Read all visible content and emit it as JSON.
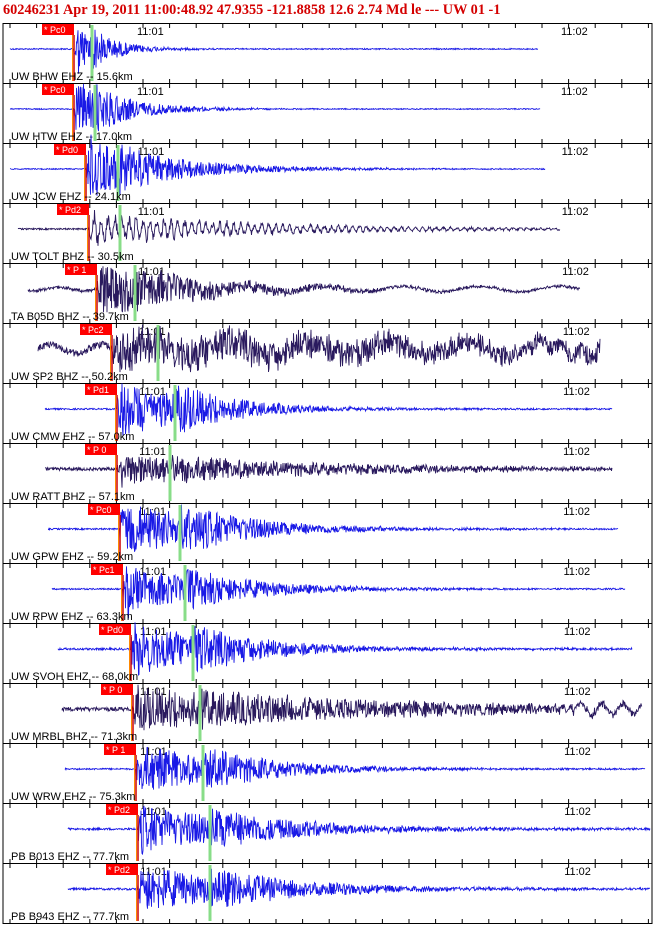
{
  "header": {
    "title": "60246231 Apr 19, 2011 11:00:48.92    47.9355 -121.8858 12.6 2.74 Md le --- UW 01  -1"
  },
  "colors": {
    "trace_ehz": "#1a1ae6",
    "trace_bhz": "#2a1a5e",
    "pick_box": "#ff0000",
    "pick_line": "#cc0000",
    "s_marker": "#88dd88",
    "origin_marker": "#ff8800",
    "frame": "#000000"
  },
  "chart_data": {
    "type": "line",
    "title": "",
    "xlabel": "",
    "ylabel": "",
    "tick_labels": [
      "11:01",
      "11:02"
    ],
    "rows": [
      {
        "label": "UW BHW EHZ -- 15.6km",
        "pick": "* Pc0",
        "component": "EHZ"
      },
      {
        "label": "UW HTW EHZ -- 17.0km",
        "pick": "* Pc0",
        "component": "EHZ"
      },
      {
        "label": "UW JCW EHZ -- 24.1km",
        "pick": "* Pd0",
        "component": "EHZ"
      },
      {
        "label": "UW TOLT BHZ -- 30.5km",
        "pick": "* Pd2",
        "component": "BHZ"
      },
      {
        "label": "TA B05D BHZ -- 39.7km",
        "pick": "* P 1",
        "component": "BHZ"
      },
      {
        "label": "UW SP2 BHZ -- 50.2km",
        "pick": "* Pc2",
        "component": "BHZ"
      },
      {
        "label": "UW CMW EHZ -- 57.0km",
        "pick": "* Pd1",
        "component": "EHZ"
      },
      {
        "label": "UW RATT BHZ -- 57.1km",
        "pick": "* P 0",
        "component": "BHZ"
      },
      {
        "label": "UW GPW EHZ -- 59.2km",
        "pick": "* Pc0",
        "component": "EHZ"
      },
      {
        "label": "UW RPW EHZ -- 63.3km",
        "pick": "* Pc1",
        "component": "EHZ"
      },
      {
        "label": "UW SVOH EHZ -- 68.0km",
        "pick": "* Pd0",
        "component": "EHZ"
      },
      {
        "label": "UW MRBL BHZ -- 71.3km",
        "pick": "* P 0",
        "component": "BHZ"
      },
      {
        "label": "UW WRW EHZ -- 75.3km",
        "pick": "* P 1",
        "component": "EHZ"
      },
      {
        "label": "PB B013 EHZ -- 77.7km",
        "pick": "* Pd2",
        "component": "EHZ"
      },
      {
        "label": "PB B943 EHZ -- 77.7km",
        "pick": "* Pd2",
        "component": "EHZ"
      }
    ]
  }
}
